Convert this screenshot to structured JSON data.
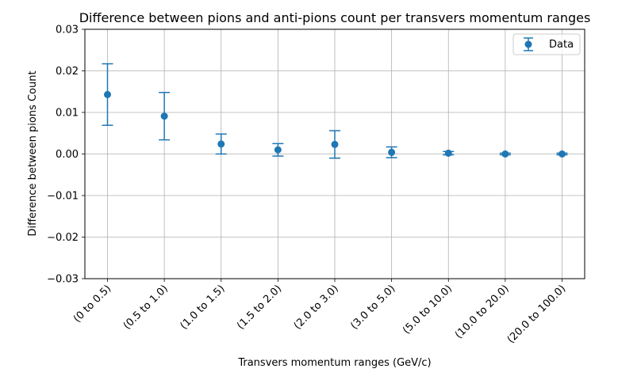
{
  "chart_data": {
    "type": "scatter",
    "title": "Difference between pions and anti-pions count per transvers momentum ranges",
    "xlabel": "Transvers momentum ranges (GeV/c)",
    "ylabel": "Difference between pions Count",
    "categories": [
      "(0 to 0.5)",
      "(0.5 to 1.0)",
      "(1.0 to 1.5)",
      "(1.5 to 2.0)",
      "(2.0 to 3.0)",
      "(3.0 to 5.0)",
      "(5.0 to 10.0)",
      "(10.0 to 20.0)",
      "(20.0 to 100.0)"
    ],
    "series": [
      {
        "name": "Data",
        "values": [
          0.0143,
          0.0091,
          0.0024,
          0.001,
          0.0023,
          0.0004,
          0.0002,
          0.0,
          0.0
        ],
        "errors": [
          0.0074,
          0.0057,
          0.0024,
          0.0015,
          0.0033,
          0.0013,
          0.0004,
          0.0002,
          0.0002
        ],
        "color": "#1f77b4"
      }
    ],
    "ylim": [
      -0.03,
      0.03
    ],
    "yticks": [
      -0.03,
      -0.02,
      -0.01,
      0.0,
      0.01,
      0.02,
      0.03
    ],
    "ytick_labels": [
      "−0.03",
      "−0.02",
      "−0.01",
      "0.00",
      "0.01",
      "0.02",
      "0.03"
    ],
    "grid": true,
    "legend_position": "top-right",
    "colors": {
      "series": "#1f77b4",
      "grid": "#b0b0b0",
      "axis": "#000000"
    }
  }
}
